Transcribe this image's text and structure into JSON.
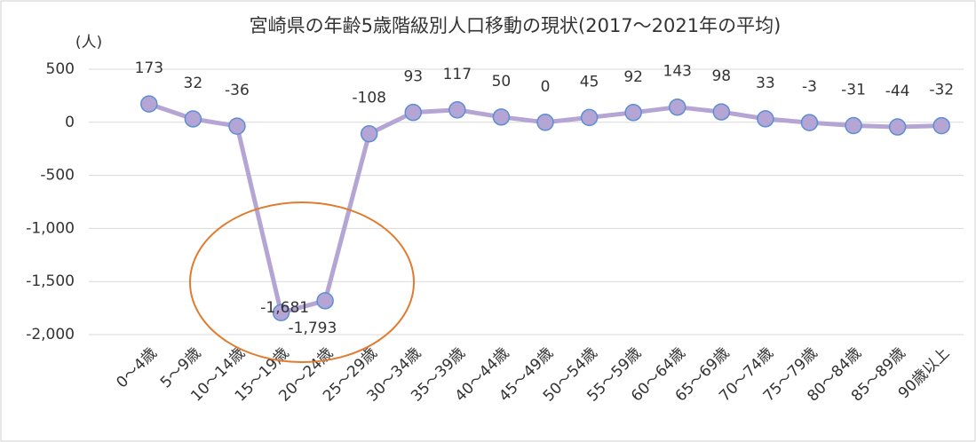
{
  "chart_data": {
    "type": "line",
    "title": "宮崎県の年齢5歳階級別人口移動の現状(2017～2021年の平均)",
    "y_label": "(人)",
    "categories": [
      "0～4歳",
      "5～9歳",
      "10～14歳",
      "15～19歳",
      "20～24歳",
      "25～29歳",
      "30～34歳",
      "35～39歳",
      "40～44歳",
      "45～49歳",
      "50～54歳",
      "55～59歳",
      "60～64歳",
      "65～69歳",
      "70～74歳",
      "75～79歳",
      "80～84歳",
      "85～89歳",
      "90歳以上"
    ],
    "series": [
      {
        "name": "人口移動",
        "color": "#b4a5d5",
        "values": [
          173,
          32,
          -36,
          -1793,
          -1681,
          -108,
          93,
          117,
          50,
          0,
          45,
          92,
          143,
          98,
          33,
          -3,
          -31,
          -44,
          -32
        ],
        "value_labels": [
          "173",
          "32",
          "-36",
          "-1,793",
          "-1,681",
          "-108",
          "93",
          "117",
          "50",
          "0",
          "45",
          "92",
          "143",
          "98",
          "33",
          "-3",
          "-31",
          "-44",
          "-32"
        ]
      }
    ],
    "ylim": [
      -2000,
      500
    ],
    "yticks": [
      {
        "value": -2000,
        "label": "-2,000"
      },
      {
        "value": -1500,
        "label": "-1,500"
      },
      {
        "value": -1000,
        "label": "-1,000"
      },
      -500,
      0,
      500
    ],
    "grid": true
  }
}
